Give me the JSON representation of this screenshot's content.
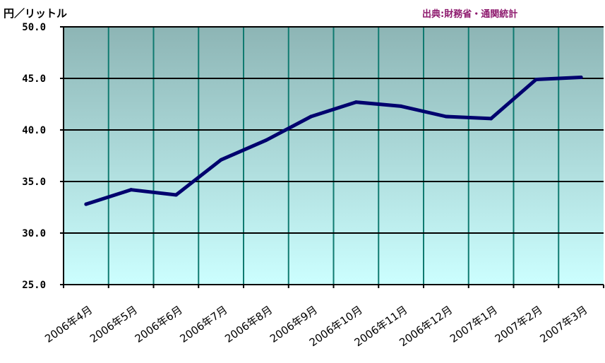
{
  "header": {
    "unit": "円／リットル",
    "source": "出典:財務省・通関統計"
  },
  "colors": {
    "line": "#00006e",
    "vgrid": "#0f7a70",
    "hgrid": "#000000",
    "bg_top": "#8db5b5",
    "bg_bottom": "#ccffff",
    "source_text": "#8e1a6e"
  },
  "chart_data": {
    "type": "line",
    "categories": [
      "2006年4月",
      "2006年5月",
      "2006年6月",
      "2006年7月",
      "2006年8月",
      "2006年9月",
      "2006年10月",
      "2006年11月",
      "2006年12月",
      "2007年1月",
      "2007年2月",
      "2007年3月"
    ],
    "series": [
      {
        "values": [
          32.8,
          34.2,
          33.7,
          37.1,
          39.0,
          41.3,
          42.7,
          42.3,
          41.3,
          41.1,
          44.9,
          45.1
        ]
      }
    ],
    "ylim": [
      25,
      50
    ],
    "yticks": [
      "50.0",
      "45.0",
      "40.0",
      "35.0",
      "30.0",
      "25.0"
    ],
    "grid": true
  }
}
